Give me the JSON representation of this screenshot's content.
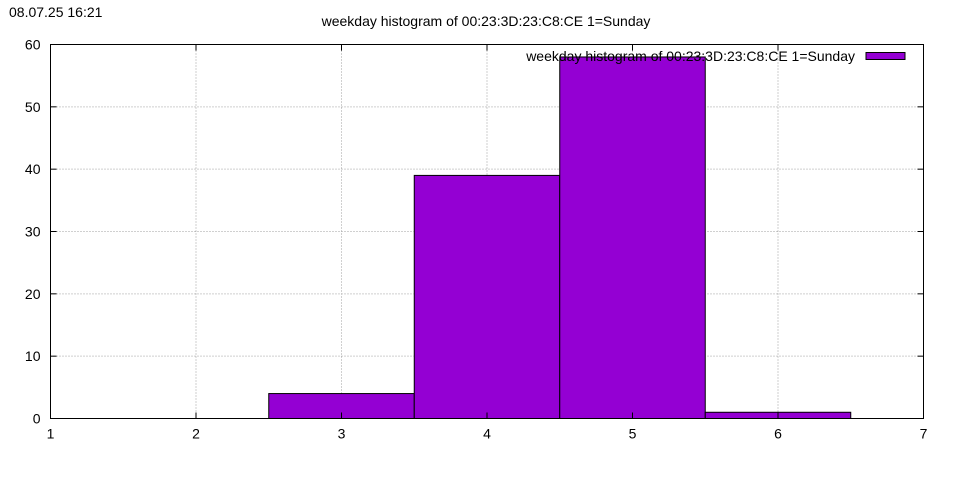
{
  "timestamp": "08.07.25 16:21",
  "chart_data": {
    "type": "bar",
    "title": "weekday histogram of 00:23:3D:23:C8:CE 1=Sunday",
    "xlabel": "",
    "ylabel": "",
    "xlim": [
      1,
      7
    ],
    "ylim": [
      0,
      60
    ],
    "x_ticks": [
      1,
      2,
      3,
      4,
      5,
      6,
      7
    ],
    "y_ticks": [
      0,
      10,
      20,
      30,
      40,
      50,
      60
    ],
    "grid": true,
    "legend_position": "top-right",
    "bar_width": 1,
    "series": [
      {
        "name": "weekday histogram of 00:23:3D:23:C8:CE 1=Sunday",
        "color": "#9400d3",
        "x": [
          3,
          4,
          5,
          6
        ],
        "values": [
          4,
          39,
          58,
          1
        ]
      }
    ]
  }
}
